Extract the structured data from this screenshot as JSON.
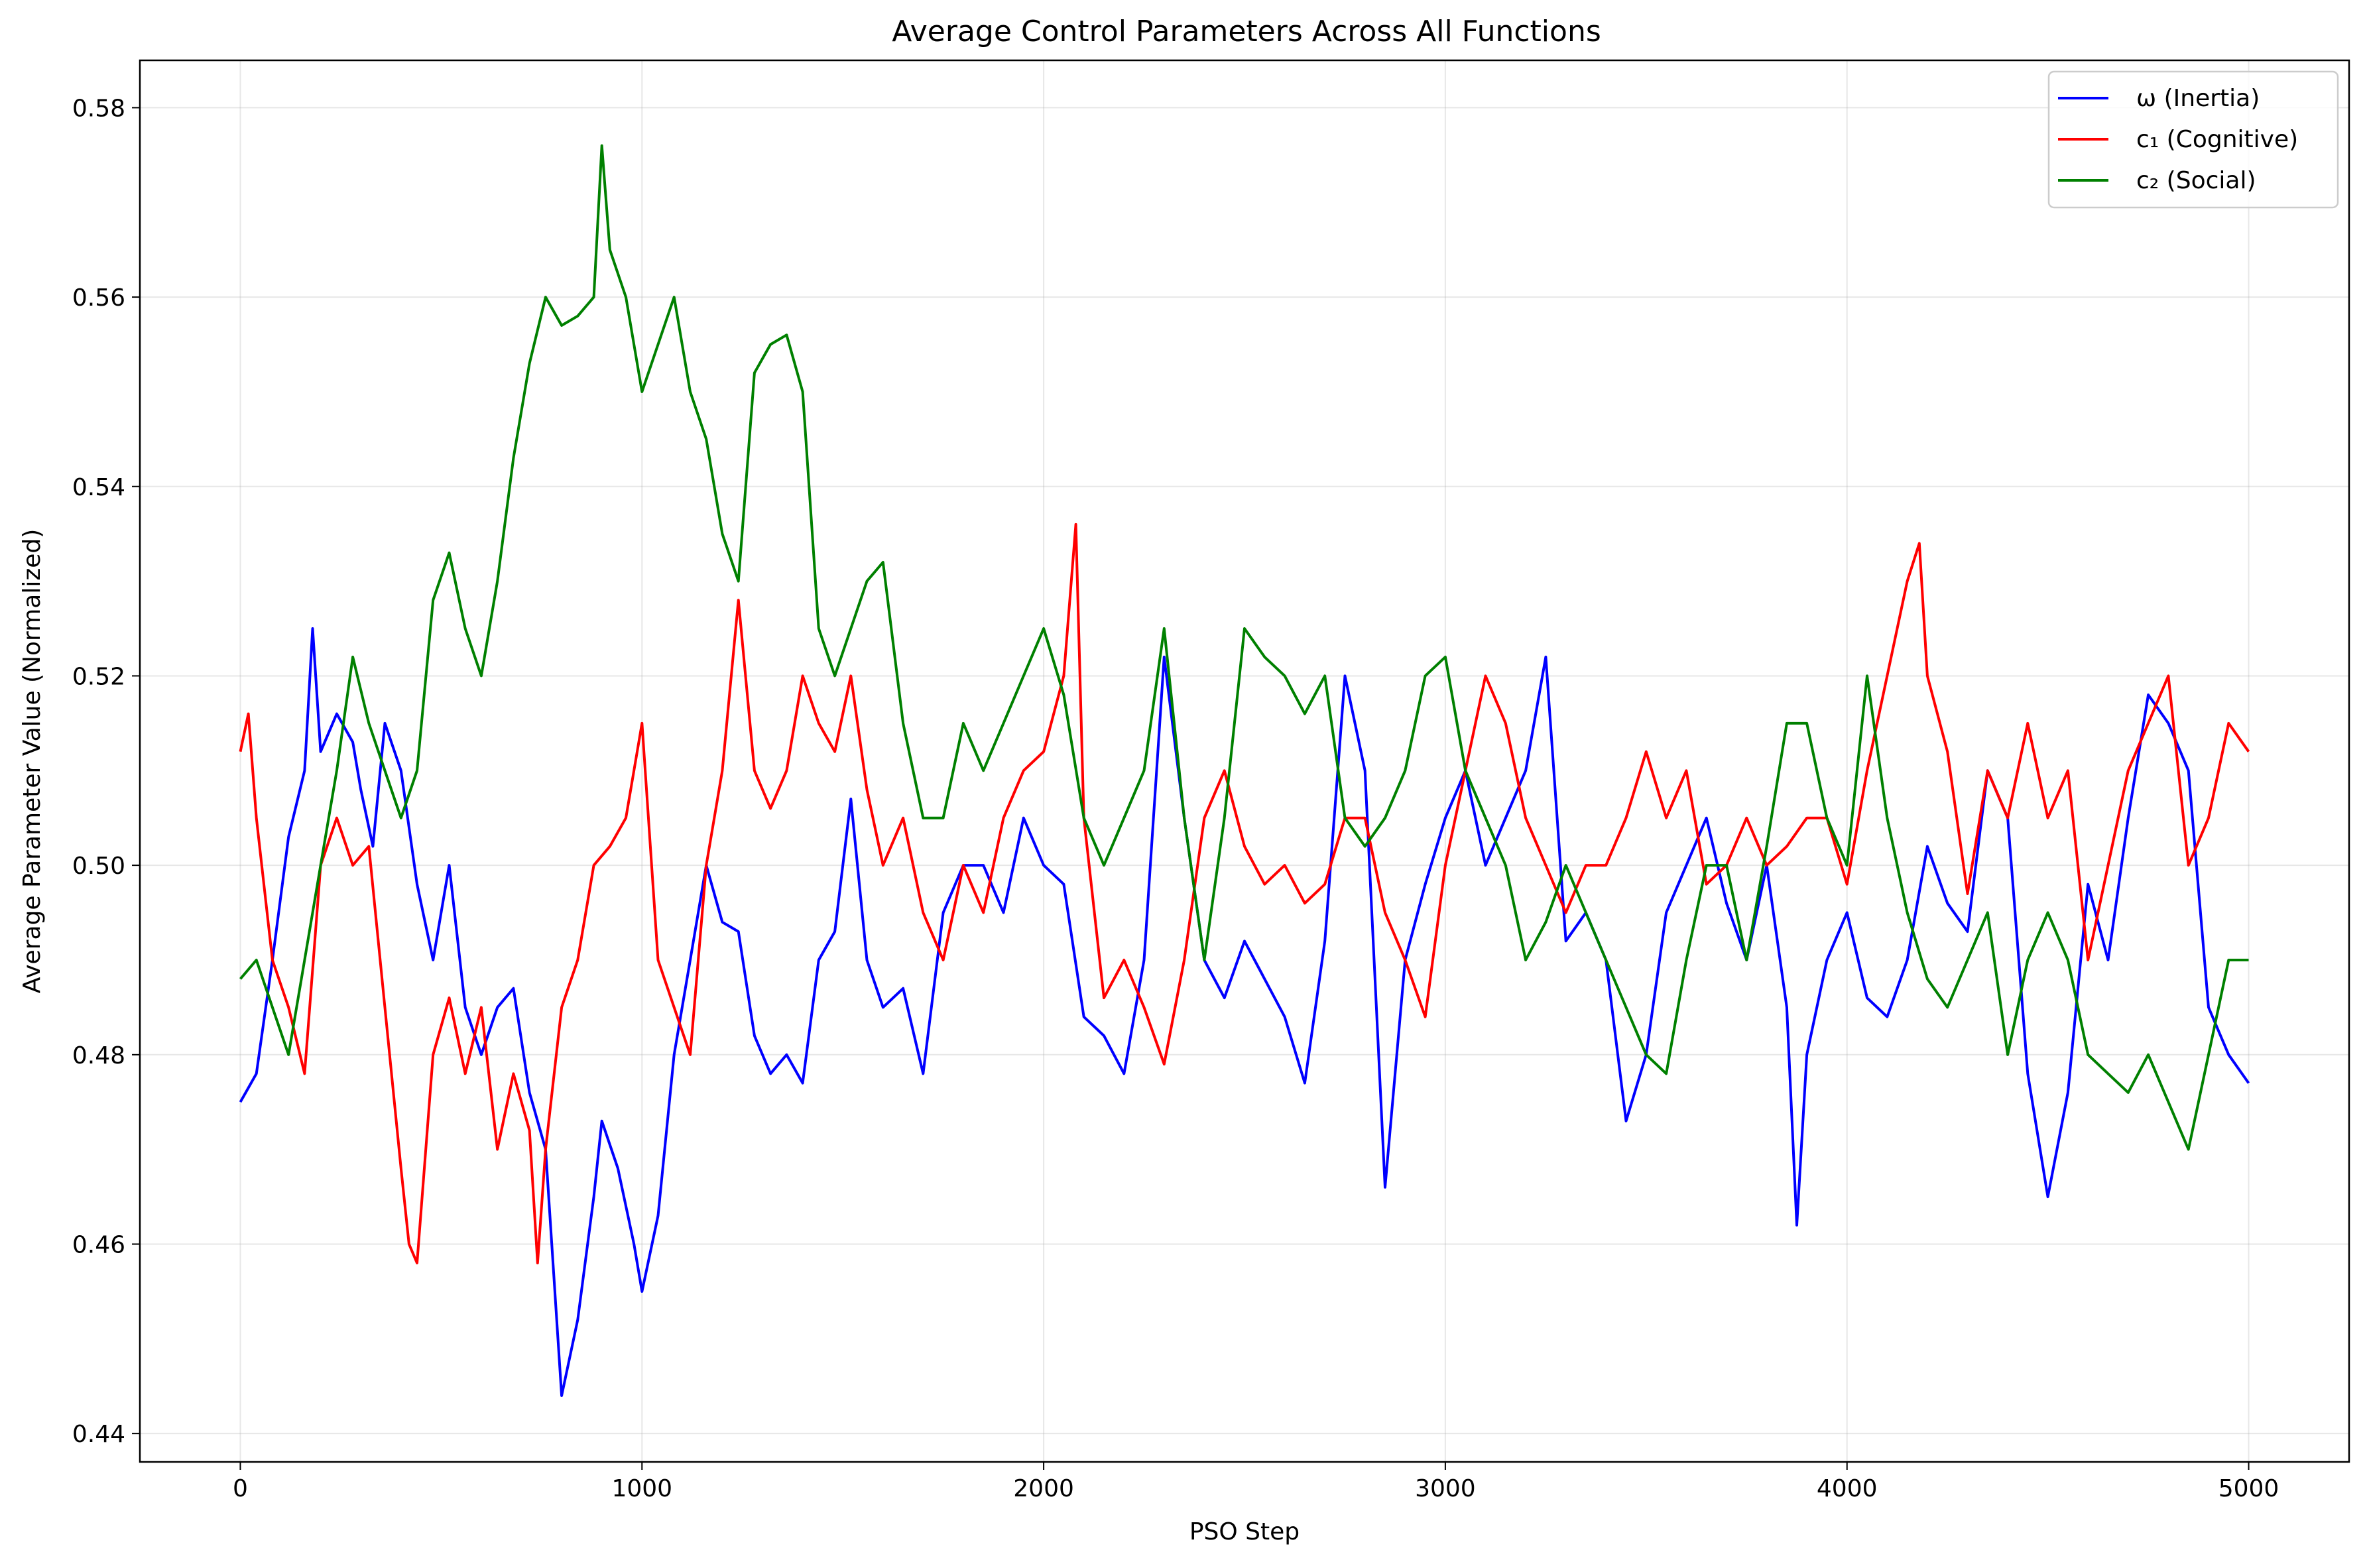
{
  "chart_data": {
    "type": "line",
    "title": "Average Control Parameters Across All Functions",
    "xlabel": "PSO Step",
    "ylabel": "Average Parameter Value (Normalized)",
    "xlim": [
      -250,
      5250
    ],
    "ylim": [
      0.437,
      0.585
    ],
    "xticks": [
      0,
      1000,
      2000,
      3000,
      4000,
      5000
    ],
    "xtick_labels": [
      "0",
      "1000",
      "2000",
      "3000",
      "4000",
      "5000"
    ],
    "yticks": [
      0.44,
      0.46,
      0.48,
      0.5,
      0.52,
      0.54,
      0.56,
      0.58
    ],
    "ytick_labels": [
      "0.44",
      "0.46",
      "0.48",
      "0.50",
      "0.52",
      "0.54",
      "0.56",
      "0.58"
    ],
    "grid": true,
    "legend_position": "top-right",
    "series": [
      {
        "name": "ω (Inertia)",
        "color": "#0000ff",
        "x": [
          0,
          40,
          80,
          120,
          160,
          180,
          200,
          240,
          280,
          300,
          330,
          360,
          400,
          440,
          480,
          520,
          560,
          600,
          640,
          680,
          720,
          760,
          800,
          840,
          880,
          900,
          940,
          980,
          1000,
          1040,
          1080,
          1120,
          1160,
          1200,
          1240,
          1280,
          1320,
          1360,
          1400,
          1440,
          1480,
          1520,
          1560,
          1600,
          1650,
          1700,
          1750,
          1800,
          1850,
          1900,
          1950,
          2000,
          2050,
          2100,
          2150,
          2200,
          2250,
          2300,
          2350,
          2400,
          2450,
          2500,
          2550,
          2600,
          2650,
          2700,
          2750,
          2800,
          2850,
          2900,
          2950,
          3000,
          3050,
          3100,
          3150,
          3200,
          3250,
          3300,
          3350,
          3400,
          3450,
          3500,
          3550,
          3600,
          3650,
          3700,
          3750,
          3800,
          3850,
          3875,
          3900,
          3950,
          4000,
          4050,
          4100,
          4150,
          4200,
          4250,
          4300,
          4350,
          4400,
          4450,
          4500,
          4550,
          4600,
          4650,
          4700,
          4750,
          4800,
          4850,
          4900,
          4950,
          5000
        ],
        "values": [
          0.475,
          0.478,
          0.49,
          0.503,
          0.51,
          0.525,
          0.512,
          0.516,
          0.513,
          0.508,
          0.502,
          0.515,
          0.51,
          0.498,
          0.49,
          0.5,
          0.485,
          0.48,
          0.485,
          0.487,
          0.476,
          0.47,
          0.444,
          0.452,
          0.465,
          0.473,
          0.468,
          0.46,
          0.455,
          0.463,
          0.48,
          0.49,
          0.5,
          0.494,
          0.493,
          0.482,
          0.478,
          0.48,
          0.477,
          0.49,
          0.493,
          0.507,
          0.49,
          0.485,
          0.487,
          0.478,
          0.495,
          0.5,
          0.5,
          0.495,
          0.505,
          0.5,
          0.498,
          0.484,
          0.482,
          0.478,
          0.49,
          0.522,
          0.505,
          0.49,
          0.486,
          0.492,
          0.488,
          0.484,
          0.477,
          0.492,
          0.52,
          0.51,
          0.466,
          0.49,
          0.498,
          0.505,
          0.51,
          0.5,
          0.505,
          0.51,
          0.522,
          0.492,
          0.495,
          0.49,
          0.473,
          0.48,
          0.495,
          0.5,
          0.505,
          0.496,
          0.49,
          0.5,
          0.485,
          0.462,
          0.48,
          0.49,
          0.495,
          0.486,
          0.484,
          0.49,
          0.502,
          0.496,
          0.493,
          0.51,
          0.505,
          0.478,
          0.465,
          0.476,
          0.498,
          0.49,
          0.505,
          0.518,
          0.515,
          0.51,
          0.485,
          0.48,
          0.477
        ]
      },
      {
        "name": "c₁ (Cognitive)",
        "color": "#ff0000",
        "x": [
          0,
          20,
          40,
          80,
          120,
          160,
          200,
          240,
          280,
          320,
          360,
          400,
          420,
          440,
          480,
          520,
          560,
          600,
          640,
          680,
          720,
          740,
          760,
          800,
          840,
          880,
          920,
          960,
          1000,
          1040,
          1080,
          1120,
          1160,
          1200,
          1240,
          1280,
          1320,
          1360,
          1400,
          1440,
          1480,
          1520,
          1560,
          1600,
          1650,
          1700,
          1750,
          1800,
          1850,
          1900,
          1950,
          2000,
          2050,
          2080,
          2100,
          2150,
          2200,
          2250,
          2300,
          2350,
          2400,
          2450,
          2500,
          2550,
          2600,
          2650,
          2700,
          2750,
          2800,
          2850,
          2900,
          2950,
          3000,
          3050,
          3100,
          3150,
          3200,
          3250,
          3300,
          3350,
          3400,
          3450,
          3500,
          3550,
          3600,
          3650,
          3700,
          3750,
          3800,
          3850,
          3900,
          3950,
          4000,
          4050,
          4100,
          4150,
          4180,
          4200,
          4250,
          4300,
          4350,
          4400,
          4450,
          4500,
          4550,
          4600,
          4650,
          4700,
          4750,
          4800,
          4850,
          4900,
          4950,
          5000
        ],
        "values": [
          0.512,
          0.516,
          0.505,
          0.49,
          0.485,
          0.478,
          0.5,
          0.505,
          0.5,
          0.502,
          0.485,
          0.468,
          0.46,
          0.458,
          0.48,
          0.486,
          0.478,
          0.485,
          0.47,
          0.478,
          0.472,
          0.458,
          0.47,
          0.485,
          0.49,
          0.5,
          0.502,
          0.505,
          0.515,
          0.49,
          0.485,
          0.48,
          0.5,
          0.51,
          0.528,
          0.51,
          0.506,
          0.51,
          0.52,
          0.515,
          0.512,
          0.52,
          0.508,
          0.5,
          0.505,
          0.495,
          0.49,
          0.5,
          0.495,
          0.505,
          0.51,
          0.512,
          0.52,
          0.536,
          0.505,
          0.486,
          0.49,
          0.485,
          0.479,
          0.49,
          0.505,
          0.51,
          0.502,
          0.498,
          0.5,
          0.496,
          0.498,
          0.505,
          0.505,
          0.495,
          0.49,
          0.484,
          0.5,
          0.51,
          0.52,
          0.515,
          0.505,
          0.5,
          0.495,
          0.5,
          0.5,
          0.505,
          0.512,
          0.505,
          0.51,
          0.498,
          0.5,
          0.505,
          0.5,
          0.502,
          0.505,
          0.505,
          0.498,
          0.51,
          0.52,
          0.53,
          0.534,
          0.52,
          0.512,
          0.497,
          0.51,
          0.505,
          0.515,
          0.505,
          0.51,
          0.49,
          0.5,
          0.51,
          0.515,
          0.52,
          0.5,
          0.505,
          0.515,
          0.512
        ]
      },
      {
        "name": "c₂ (Social)",
        "color": "#008000",
        "x": [
          0,
          40,
          80,
          120,
          160,
          200,
          240,
          280,
          320,
          360,
          400,
          440,
          480,
          520,
          560,
          600,
          640,
          680,
          720,
          760,
          800,
          840,
          880,
          900,
          920,
          960,
          1000,
          1040,
          1080,
          1120,
          1160,
          1200,
          1240,
          1280,
          1320,
          1360,
          1400,
          1440,
          1480,
          1520,
          1560,
          1600,
          1650,
          1700,
          1750,
          1800,
          1850,
          1900,
          1950,
          2000,
          2050,
          2100,
          2150,
          2200,
          2250,
          2300,
          2350,
          2400,
          2450,
          2500,
          2550,
          2600,
          2650,
          2700,
          2750,
          2800,
          2850,
          2900,
          2950,
          3000,
          3050,
          3100,
          3150,
          3200,
          3250,
          3300,
          3350,
          3400,
          3450,
          3500,
          3550,
          3600,
          3650,
          3700,
          3750,
          3800,
          3850,
          3900,
          3950,
          4000,
          4050,
          4100,
          4150,
          4200,
          4250,
          4300,
          4350,
          4400,
          4450,
          4500,
          4550,
          4600,
          4650,
          4700,
          4750,
          4800,
          4850,
          4900,
          4950,
          5000
        ],
        "values": [
          0.488,
          0.49,
          0.485,
          0.48,
          0.49,
          0.5,
          0.51,
          0.522,
          0.515,
          0.51,
          0.505,
          0.51,
          0.528,
          0.533,
          0.525,
          0.52,
          0.53,
          0.543,
          0.553,
          0.56,
          0.557,
          0.558,
          0.56,
          0.576,
          0.565,
          0.56,
          0.55,
          0.555,
          0.56,
          0.55,
          0.545,
          0.535,
          0.53,
          0.552,
          0.555,
          0.556,
          0.55,
          0.525,
          0.52,
          0.525,
          0.53,
          0.532,
          0.515,
          0.505,
          0.505,
          0.515,
          0.51,
          0.515,
          0.52,
          0.525,
          0.518,
          0.505,
          0.5,
          0.505,
          0.51,
          0.525,
          0.505,
          0.49,
          0.505,
          0.525,
          0.522,
          0.52,
          0.516,
          0.52,
          0.505,
          0.502,
          0.505,
          0.51,
          0.52,
          0.522,
          0.51,
          0.505,
          0.5,
          0.49,
          0.494,
          0.5,
          0.495,
          0.49,
          0.485,
          0.48,
          0.478,
          0.49,
          0.5,
          0.5,
          0.49,
          0.502,
          0.515,
          0.515,
          0.505,
          0.5,
          0.52,
          0.505,
          0.495,
          0.488,
          0.485,
          0.49,
          0.495,
          0.48,
          0.49,
          0.495,
          0.49,
          0.48,
          0.478,
          0.476,
          0.48,
          0.475,
          0.47,
          0.48,
          0.49,
          0.49
        ]
      }
    ]
  }
}
